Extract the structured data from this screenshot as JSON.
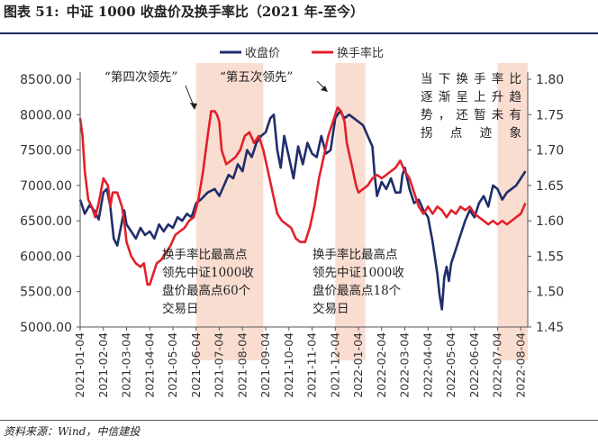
{
  "header": {
    "figure_label": "图表 51:",
    "title": "中证 1000 收盘价及换手率比（2021 年-至今）"
  },
  "footer": {
    "source": "资料来源：Wind，中信建投"
  },
  "chart_data": {
    "type": "line",
    "title": "中证 1000 收盘价及换手率比（2021 年-至今）",
    "x_labels": [
      "2021-01-04",
      "2021-02-04",
      "2021-03-04",
      "2021-04-04",
      "2021-05-04",
      "2021-06-04",
      "2021-07-04",
      "2021-08-04",
      "2021-09-04",
      "2021-10-04",
      "2021-11-04",
      "2021-12-04",
      "2022-01-04",
      "2022-02-04",
      "2022-03-04",
      "2022-04-04",
      "2022-05-04",
      "2022-06-04",
      "2022-07-04",
      "2022-08-04"
    ],
    "x_range": [
      0,
      19.3
    ],
    "y_left": {
      "min": 5000,
      "max": 8500,
      "step": 500,
      "ticks": [
        "5000.00",
        "5500.00",
        "6000.00",
        "6500.00",
        "7000.00",
        "7500.00",
        "8000.00",
        "8500.00"
      ]
    },
    "y_right": {
      "min": 1.45,
      "max": 1.8,
      "step": 0.05,
      "ticks": [
        "1.45",
        "1.50",
        "1.55",
        "1.60",
        "1.65",
        "1.70",
        "1.75",
        "1.80"
      ]
    },
    "highlight_ranges": [
      [
        5.0,
        7.9
      ],
      [
        11.0,
        12.3
      ],
      [
        18.0,
        19.3
      ]
    ],
    "series": [
      {
        "name": "收盘价",
        "axis": "left",
        "color": "#1f2d6b",
        "points": [
          [
            0.0,
            6800
          ],
          [
            0.2,
            6600
          ],
          [
            0.4,
            6720
          ],
          [
            0.6,
            6650
          ],
          [
            0.8,
            6520
          ],
          [
            1.0,
            6900
          ],
          [
            1.15,
            6950
          ],
          [
            1.3,
            6700
          ],
          [
            1.45,
            6250
          ],
          [
            1.6,
            6150
          ],
          [
            1.75,
            6400
          ],
          [
            1.9,
            6650
          ],
          [
            2.0,
            6450
          ],
          [
            2.2,
            6350
          ],
          [
            2.4,
            6250
          ],
          [
            2.6,
            6400
          ],
          [
            2.8,
            6300
          ],
          [
            3.0,
            6350
          ],
          [
            3.2,
            6250
          ],
          [
            3.4,
            6450
          ],
          [
            3.6,
            6350
          ],
          [
            3.8,
            6450
          ],
          [
            4.0,
            6400
          ],
          [
            4.2,
            6550
          ],
          [
            4.4,
            6500
          ],
          [
            4.6,
            6600
          ],
          [
            4.8,
            6550
          ],
          [
            5.0,
            6750
          ],
          [
            5.2,
            6800
          ],
          [
            5.5,
            6900
          ],
          [
            5.8,
            6950
          ],
          [
            6.0,
            6850
          ],
          [
            6.2,
            7000
          ],
          [
            6.4,
            7150
          ],
          [
            6.6,
            7100
          ],
          [
            6.8,
            7300
          ],
          [
            7.0,
            7200
          ],
          [
            7.2,
            7500
          ],
          [
            7.4,
            7400
          ],
          [
            7.6,
            7600
          ],
          [
            7.8,
            7700
          ],
          [
            8.0,
            7750
          ],
          [
            8.2,
            7950
          ],
          [
            8.35,
            8000
          ],
          [
            8.5,
            7500
          ],
          [
            8.65,
            7250
          ],
          [
            8.8,
            7700
          ],
          [
            9.0,
            7400
          ],
          [
            9.2,
            7100
          ],
          [
            9.4,
            7550
          ],
          [
            9.6,
            7300
          ],
          [
            9.8,
            7600
          ],
          [
            10.0,
            7450
          ],
          [
            10.2,
            7400
          ],
          [
            10.4,
            7700
          ],
          [
            10.6,
            7450
          ],
          [
            10.8,
            7500
          ],
          [
            11.0,
            7950
          ],
          [
            11.2,
            8050
          ],
          [
            11.4,
            7950
          ],
          [
            11.6,
            8000
          ],
          [
            11.8,
            7950
          ],
          [
            12.0,
            7900
          ],
          [
            12.2,
            7850
          ],
          [
            12.4,
            7700
          ],
          [
            12.6,
            7550
          ],
          [
            12.7,
            7150
          ],
          [
            12.8,
            6850
          ],
          [
            13.0,
            7050
          ],
          [
            13.2,
            6950
          ],
          [
            13.4,
            7100
          ],
          [
            13.6,
            6900
          ],
          [
            13.8,
            6900
          ],
          [
            13.9,
            7150
          ],
          [
            14.0,
            7250
          ],
          [
            14.2,
            6950
          ],
          [
            14.4,
            6750
          ],
          [
            14.6,
            6800
          ],
          [
            14.8,
            6650
          ],
          [
            15.0,
            6550
          ],
          [
            15.2,
            6200
          ],
          [
            15.4,
            5750
          ],
          [
            15.5,
            5450
          ],
          [
            15.6,
            5250
          ],
          [
            15.7,
            5700
          ],
          [
            15.8,
            5850
          ],
          [
            15.9,
            5650
          ],
          [
            16.0,
            5900
          ],
          [
            16.2,
            6100
          ],
          [
            16.4,
            6300
          ],
          [
            16.6,
            6500
          ],
          [
            16.8,
            6650
          ],
          [
            17.0,
            6550
          ],
          [
            17.2,
            6750
          ],
          [
            17.4,
            6850
          ],
          [
            17.6,
            6700
          ],
          [
            17.8,
            7000
          ],
          [
            18.0,
            6950
          ],
          [
            18.2,
            6800
          ],
          [
            18.4,
            6900
          ],
          [
            18.6,
            6950
          ],
          [
            18.8,
            7000
          ],
          [
            19.0,
            7100
          ],
          [
            19.2,
            7200
          ]
        ]
      },
      {
        "name": "换手率比",
        "axis": "right",
        "color": "#e2202a",
        "points": [
          [
            0.0,
            1.745
          ],
          [
            0.1,
            1.72
          ],
          [
            0.2,
            1.67
          ],
          [
            0.35,
            1.63
          ],
          [
            0.5,
            1.62
          ],
          [
            0.65,
            1.605
          ],
          [
            0.8,
            1.625
          ],
          [
            1.0,
            1.66
          ],
          [
            1.2,
            1.65
          ],
          [
            1.3,
            1.62
          ],
          [
            1.4,
            1.64
          ],
          [
            1.6,
            1.64
          ],
          [
            1.8,
            1.62
          ],
          [
            1.9,
            1.6
          ],
          [
            2.0,
            1.57
          ],
          [
            2.2,
            1.55
          ],
          [
            2.4,
            1.54
          ],
          [
            2.6,
            1.535
          ],
          [
            2.75,
            1.54
          ],
          [
            2.9,
            1.51
          ],
          [
            3.0,
            1.51
          ],
          [
            3.15,
            1.525
          ],
          [
            3.3,
            1.54
          ],
          [
            3.5,
            1.545
          ],
          [
            3.7,
            1.555
          ],
          [
            3.9,
            1.565
          ],
          [
            4.1,
            1.58
          ],
          [
            4.3,
            1.585
          ],
          [
            4.5,
            1.59
          ],
          [
            4.7,
            1.6
          ],
          [
            4.9,
            1.605
          ],
          [
            5.1,
            1.63
          ],
          [
            5.3,
            1.67
          ],
          [
            5.5,
            1.72
          ],
          [
            5.65,
            1.755
          ],
          [
            5.8,
            1.755
          ],
          [
            5.9,
            1.75
          ],
          [
            6.0,
            1.74
          ],
          [
            6.1,
            1.7
          ],
          [
            6.3,
            1.68
          ],
          [
            6.5,
            1.685
          ],
          [
            6.7,
            1.69
          ],
          [
            6.9,
            1.7
          ],
          [
            7.1,
            1.72
          ],
          [
            7.3,
            1.725
          ],
          [
            7.5,
            1.71
          ],
          [
            7.7,
            1.72
          ],
          [
            7.9,
            1.7
          ],
          [
            8.1,
            1.67
          ],
          [
            8.3,
            1.64
          ],
          [
            8.5,
            1.61
          ],
          [
            8.7,
            1.6
          ],
          [
            8.9,
            1.595
          ],
          [
            9.1,
            1.59
          ],
          [
            9.3,
            1.575
          ],
          [
            9.5,
            1.57
          ],
          [
            9.7,
            1.57
          ],
          [
            9.9,
            1.59
          ],
          [
            10.1,
            1.62
          ],
          [
            10.3,
            1.66
          ],
          [
            10.5,
            1.69
          ],
          [
            10.7,
            1.72
          ],
          [
            10.9,
            1.74
          ],
          [
            11.0,
            1.75
          ],
          [
            11.1,
            1.76
          ],
          [
            11.25,
            1.755
          ],
          [
            11.4,
            1.74
          ],
          [
            11.5,
            1.71
          ],
          [
            11.7,
            1.68
          ],
          [
            11.9,
            1.65
          ],
          [
            12.0,
            1.64
          ],
          [
            12.2,
            1.645
          ],
          [
            12.4,
            1.65
          ],
          [
            12.6,
            1.66
          ],
          [
            12.8,
            1.665
          ],
          [
            13.0,
            1.66
          ],
          [
            13.2,
            1.665
          ],
          [
            13.4,
            1.67
          ],
          [
            13.6,
            1.675
          ],
          [
            13.8,
            1.685
          ],
          [
            14.0,
            1.67
          ],
          [
            14.2,
            1.66
          ],
          [
            14.4,
            1.64
          ],
          [
            14.6,
            1.62
          ],
          [
            14.8,
            1.61
          ],
          [
            15.0,
            1.62
          ],
          [
            15.2,
            1.61
          ],
          [
            15.4,
            1.62
          ],
          [
            15.6,
            1.615
          ],
          [
            15.8,
            1.605
          ],
          [
            16.0,
            1.615
          ],
          [
            16.2,
            1.61
          ],
          [
            16.4,
            1.62
          ],
          [
            16.6,
            1.615
          ],
          [
            16.8,
            1.62
          ],
          [
            17.0,
            1.61
          ],
          [
            17.2,
            1.605
          ],
          [
            17.4,
            1.6
          ],
          [
            17.6,
            1.595
          ],
          [
            17.8,
            1.6
          ],
          [
            18.0,
            1.595
          ],
          [
            18.2,
            1.6
          ],
          [
            18.4,
            1.595
          ],
          [
            18.6,
            1.6
          ],
          [
            18.8,
            1.605
          ],
          [
            19.0,
            1.61
          ],
          [
            19.2,
            1.625
          ]
        ]
      }
    ],
    "annotations": {
      "fourth_lead": "“第四次领先”",
      "fifth_lead": "“第五次领先”",
      "note_lines": [
        "当下换手率比",
        "逐渐呈上升趋",
        "势，还暂未有",
        "拐点迹象"
      ],
      "box1_lines": [
        "换手率比最高点",
        "领先中证1000收",
        "盘价最高点60个",
        "交易日"
      ],
      "box2_lines": [
        "换手率比最高点",
        "领先中证1000收",
        "盘价最高点18个",
        "交易日"
      ]
    },
    "highlight_color": "#f8d2c2",
    "legend_position": "top-center"
  }
}
